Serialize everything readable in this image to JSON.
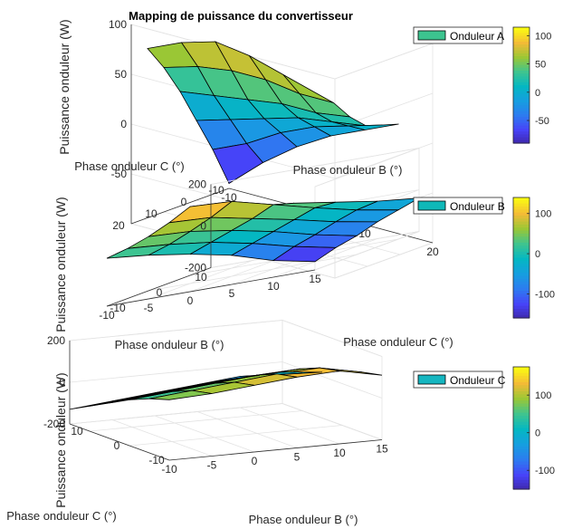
{
  "colors": {
    "parula": [
      "#3e26a8",
      "#4743f8",
      "#2d7bf0",
      "#169ee0",
      "#04b7c2",
      "#3fc48f",
      "#9ac735",
      "#f3bb36",
      "#fbfb12"
    ],
    "legend_A": "#3cc48f",
    "legend_B": "#0fb8b8",
    "legend_C": "#15b6c0"
  },
  "chart_data": [
    {
      "type": "surface",
      "title": "Mapping de puissance du convertisseur",
      "zlabel": "Puissance onduleur (W)",
      "xlabel": "Phase onduleur B (°)",
      "ylabel": "Phase onduleur C (°)",
      "legend": "Onduleur A",
      "legend_placement": "top-right",
      "x": [
        -10,
        -5,
        0,
        5,
        10,
        15
      ],
      "y": [
        -10,
        -5,
        0,
        5,
        10,
        15
      ],
      "z": [
        [
          -95,
          -65,
          -40,
          -20,
          -5,
          10
        ],
        [
          -55,
          -40,
          -20,
          -5,
          5,
          15
        ],
        [
          -20,
          -10,
          0,
          10,
          15,
          20
        ],
        [
          15,
          20,
          25,
          30,
          30,
          35
        ],
        [
          45,
          55,
          60,
          60,
          55,
          55
        ],
        [
          70,
          85,
          95,
          90,
          80,
          70
        ]
      ],
      "xlim": [
        -10,
        20
      ],
      "ylim": [
        -10,
        20
      ],
      "zlim": [
        -100,
        100
      ],
      "x_ticks": [
        -10,
        0,
        10,
        20
      ],
      "y_ticks": [
        -10,
        0,
        10,
        20
      ],
      "z_ticks": [
        -50,
        0,
        50,
        100
      ],
      "colorbar_ticks": [
        100,
        50,
        0,
        -50
      ],
      "colorbar_range": [
        -90,
        115
      ]
    },
    {
      "type": "surface",
      "zlabel": "Puissance onduleur (W)",
      "xlabel": "Phase onduleur B (°)",
      "ylabel": "Phase onduleur C (°)",
      "legend": "Onduleur B",
      "legend_placement": "top-right",
      "x": [
        -10,
        -5,
        0,
        5,
        10,
        15
      ],
      "y": [
        -10,
        -5,
        0,
        5,
        10,
        15
      ],
      "z": [
        [
          30,
          10,
          -20,
          -60,
          -120,
          -160
        ],
        [
          40,
          25,
          0,
          -40,
          -90,
          -130
        ],
        [
          60,
          50,
          20,
          -20,
          -70,
          -110
        ],
        [
          90,
          80,
          40,
          0,
          -45,
          -80
        ],
        [
          130,
          120,
          70,
          20,
          -25,
          -60
        ],
        [
          60,
          60,
          40,
          10,
          -20,
          -40
        ]
      ],
      "xlim": [
        -10,
        15
      ],
      "ylim": [
        -10,
        15
      ],
      "zlim": [
        -200,
        200
      ],
      "x_ticks": [
        -10,
        -5,
        0,
        5,
        10,
        15
      ],
      "y_ticks": [
        -10,
        0,
        10
      ],
      "z_ticks": [
        -200,
        0,
        200
      ],
      "colorbar_ticks": [
        100,
        0,
        -100
      ],
      "colorbar_range": [
        -160,
        140
      ]
    },
    {
      "type": "surface",
      "zlabel": "Puissance onduleur (W)",
      "xlabel": "Phase onduleur B (°)",
      "ylabel": "Phase onduleur C (°)",
      "legend": "Onduleur C",
      "legend_placement": "top-right",
      "x": [
        -10,
        -5,
        0,
        5,
        10,
        15
      ],
      "y": [
        -10,
        -5,
        0,
        5,
        10,
        15
      ],
      "z": [
        [
          90,
          100,
          120,
          140,
          150,
          110
        ],
        [
          60,
          80,
          100,
          120,
          130,
          90
        ],
        [
          20,
          40,
          60,
          80,
          90,
          60
        ],
        [
          -30,
          -10,
          10,
          30,
          40,
          20
        ],
        [
          -80,
          -60,
          -40,
          -20,
          -10,
          -20
        ],
        [
          -130,
          -110,
          -90,
          -70,
          -50,
          -60
        ]
      ],
      "xlim": [
        -10,
        15
      ],
      "ylim": [
        -10,
        15
      ],
      "zlim": [
        -200,
        200
      ],
      "x_ticks": [
        -10,
        -5,
        0,
        5,
        10,
        15
      ],
      "y_ticks": [
        -10,
        0,
        10
      ],
      "z_ticks": [
        -200,
        0,
        200
      ],
      "colorbar_ticks": [
        100,
        0,
        -100
      ],
      "colorbar_range": [
        -150,
        175
      ]
    }
  ]
}
